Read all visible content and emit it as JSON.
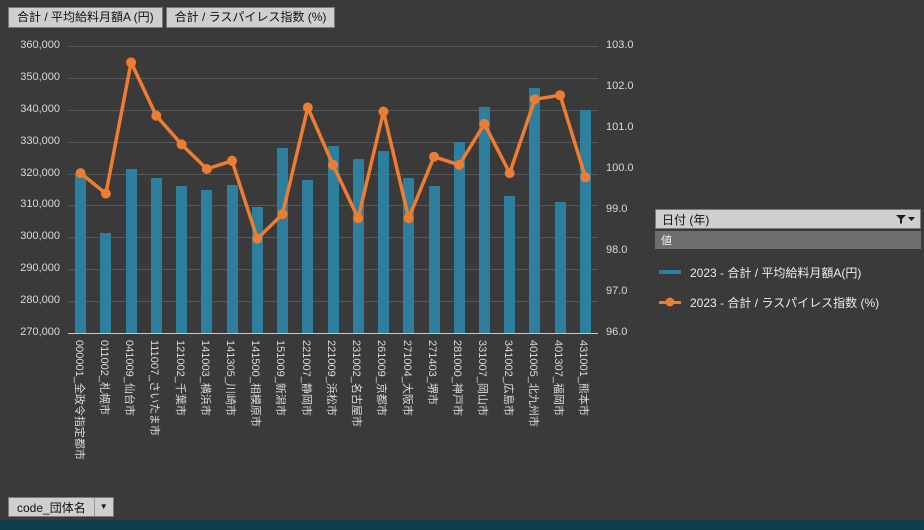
{
  "field_buttons": {
    "salary": "合計 / 平均給料月額A (円)",
    "laspeyres": "合計 / ラスパイレス指数 (%)"
  },
  "filter_panel": {
    "date_field": "日付 (年)",
    "values_header": "値"
  },
  "axis_field_button": {
    "label": "code_団体名",
    "arrow": "▼"
  },
  "colors": {
    "background": "#3a3a3a",
    "gridline": "#575757",
    "axis_line": "#c8c8c8",
    "axis_text": "#d9d9d9",
    "bar": "#2e7e9d",
    "line": "#ed7d31",
    "bottom_strip": "#0d3e4c"
  },
  "chart_data": {
    "type": "combo",
    "title": "",
    "categories": [
      "000001_全政令指定都市",
      "011002_札幌市",
      "041009_仙台市",
      "111007_さいたま市",
      "121002_千葉市",
      "141003_横浜市",
      "141305_川崎市",
      "141500_相模原市",
      "151009_新潟市",
      "221007_静岡市",
      "221009_浜松市",
      "231002_名古屋市",
      "261009_京都市",
      "271004_大阪市",
      "271403_堺市",
      "281000_神戸市",
      "331007_岡山市",
      "341002_広島市",
      "401005_北九州市",
      "401307_福岡市",
      "431001_熊本市"
    ],
    "series": [
      {
        "name": "2023 - 合計 / 平均給料月額A(円)",
        "chart_type": "bar",
        "axis": "left",
        "color": "#2e7e9d",
        "values": [
          320000,
          301500,
          321500,
          318500,
          316000,
          315000,
          316500,
          309500,
          328000,
          318000,
          328500,
          324500,
          327000,
          318500,
          316000,
          330000,
          341000,
          313000,
          347000,
          311000,
          340000
        ]
      },
      {
        "name": "2023 - 合計 / ラスパイレス指数 (%)",
        "chart_type": "line",
        "axis": "right",
        "color": "#ed7d31",
        "values": [
          99.9,
          99.4,
          102.6,
          101.3,
          100.6,
          100.0,
          100.2,
          98.3,
          98.9,
          101.5,
          100.1,
          98.8,
          101.4,
          98.8,
          100.3,
          100.1,
          101.1,
          99.9,
          101.7,
          101.8,
          99.8
        ]
      }
    ],
    "left_axis": {
      "min": 270000,
      "max": 360000,
      "step": 10000,
      "tick_labels": [
        "360,000",
        "350,000",
        "340,000",
        "330,000",
        "320,000",
        "310,000",
        "300,000",
        "290,000",
        "280,000",
        "270,000"
      ]
    },
    "right_axis": {
      "min": 96.0,
      "max": 103.0,
      "step": 1.0,
      "tick_labels": [
        "103.0",
        "102.0",
        "101.0",
        "100.0",
        "99.0",
        "98.0",
        "97.0",
        "96.0"
      ]
    },
    "grid": true,
    "legend_position": "right"
  }
}
